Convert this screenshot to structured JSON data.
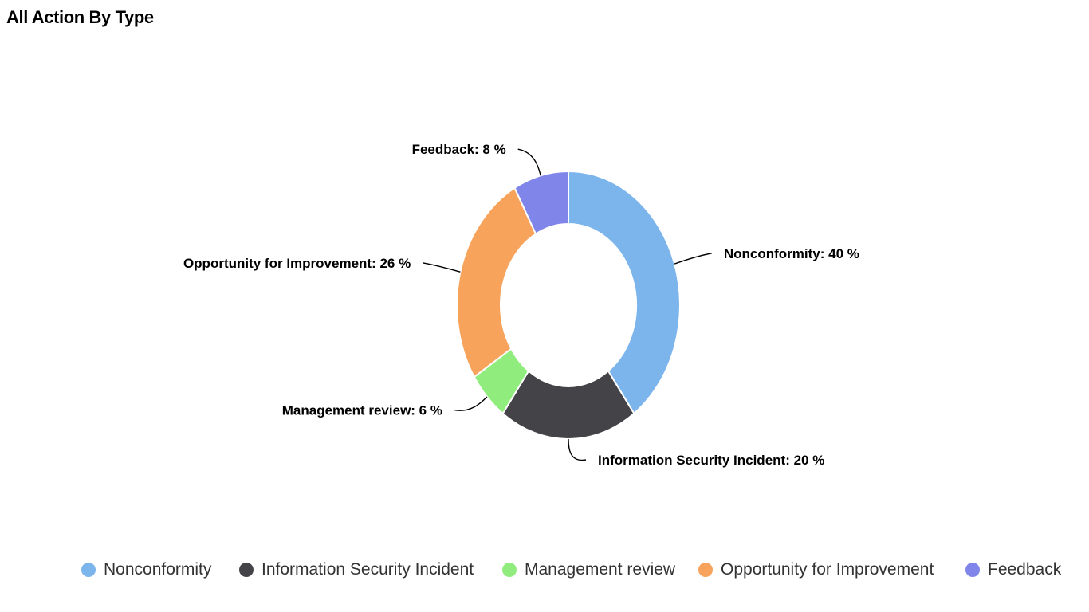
{
  "header": {
    "title": "All Action By Type"
  },
  "chart_data": {
    "type": "pie",
    "title": "All Action By Type",
    "donut": true,
    "label_format": "{name}: {value} %",
    "legend_position": "bottom",
    "series": [
      {
        "name": "Nonconformity",
        "value": 40,
        "color": "#7cb5ec",
        "label": "Nonconformity: 40 %"
      },
      {
        "name": "Information Security Incident",
        "value": 20,
        "color": "#434348",
        "label": "Information Security Incident: 20 %"
      },
      {
        "name": "Management review",
        "value": 6,
        "color": "#90ed7d",
        "label": "Management review: 6 %"
      },
      {
        "name": "Opportunity for Improvement",
        "value": 26,
        "color": "#f7a35c",
        "label": "Opportunity for Improvement: 26 %"
      },
      {
        "name": "Feedback",
        "value": 8,
        "color": "#8085e9",
        "label": "Feedback: 8 %"
      }
    ]
  },
  "legend": {
    "items": [
      {
        "label": "Nonconformity",
        "color": "#7cb5ec"
      },
      {
        "label": "Information Security Incident",
        "color": "#434348"
      },
      {
        "label": "Management review",
        "color": "#90ed7d"
      },
      {
        "label": "Opportunity for Improvement",
        "color": "#f7a35c"
      },
      {
        "label": "Feedback",
        "color": "#8085e9"
      }
    ]
  }
}
